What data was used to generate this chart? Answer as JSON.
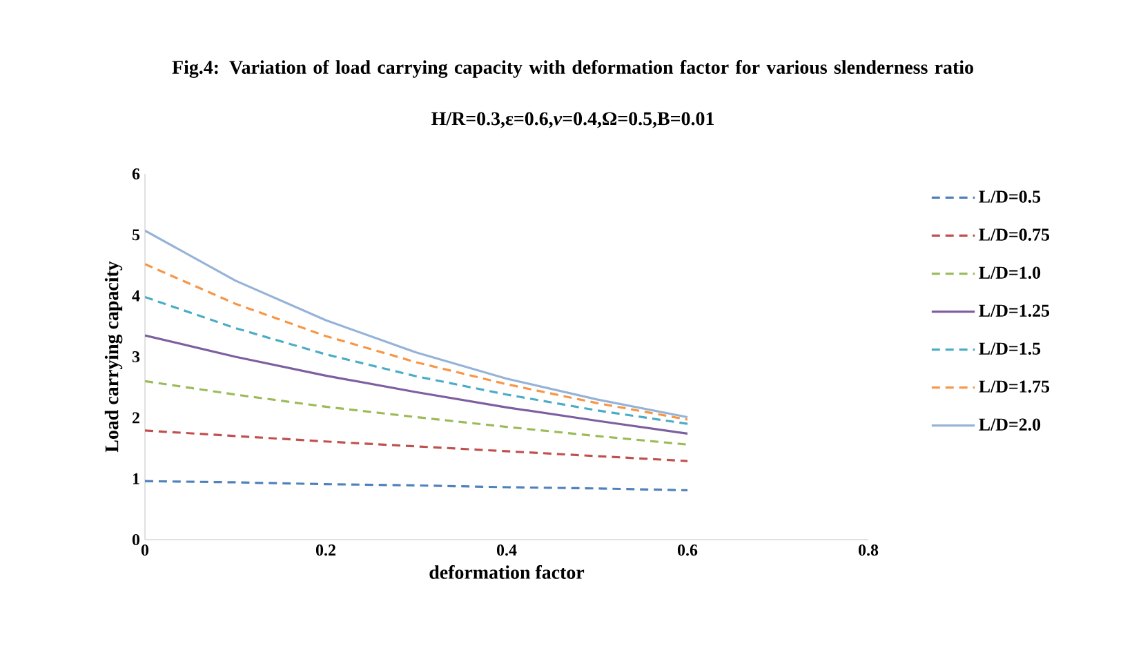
{
  "chart_data": {
    "type": "line",
    "title": "Fig.4: Variation of load carrying capacity with deformation factor for various slenderness ratio",
    "subtitle": "H/R=0.3,ε=0.6,*ν*=0.4,Ω=0.5,B=0.01",
    "xlabel": "deformation factor",
    "ylabel": "Load carrying capacity",
    "x": [
      0,
      0.1,
      0.2,
      0.3,
      0.4,
      0.5,
      0.6
    ],
    "series": [
      {
        "name": "L/D=0.5",
        "color": "#4f81bd",
        "line_style": "dashed",
        "values": [
          0.96,
          0.94,
          0.91,
          0.89,
          0.86,
          0.84,
          0.81
        ]
      },
      {
        "name": "L/D=0.75",
        "color": "#c0504d",
        "line_style": "dashed",
        "values": [
          1.79,
          1.7,
          1.61,
          1.53,
          1.45,
          1.37,
          1.29
        ]
      },
      {
        "name": "L/D=1.0",
        "color": "#9bbb59",
        "line_style": "dashed",
        "values": [
          2.6,
          2.38,
          2.18,
          2.01,
          1.85,
          1.7,
          1.56
        ]
      },
      {
        "name": "L/D=1.25",
        "color": "#7d5fa0",
        "line_style": "solid",
        "values": [
          3.35,
          3.0,
          2.69,
          2.42,
          2.17,
          1.95,
          1.74
        ]
      },
      {
        "name": "L/D=1.5",
        "color": "#4bacc6",
        "line_style": "dashed",
        "values": [
          3.98,
          3.47,
          3.04,
          2.68,
          2.38,
          2.12,
          1.9
        ]
      },
      {
        "name": "L/D=1.75",
        "color": "#f79646",
        "line_style": "dashed",
        "values": [
          4.52,
          3.87,
          3.34,
          2.91,
          2.55,
          2.24,
          1.97
        ]
      },
      {
        "name": "L/D=2.0",
        "color": "#95b3d7",
        "line_style": "solid",
        "values": [
          5.07,
          4.25,
          3.6,
          3.07,
          2.64,
          2.3,
          2.01
        ]
      }
    ],
    "xlim": [
      0,
      0.8
    ],
    "xticks": [
      0,
      0.2,
      0.4,
      0.6,
      0.8
    ],
    "ylim": [
      0,
      6
    ],
    "yticks": [
      0,
      1,
      2,
      3,
      4,
      5,
      6
    ],
    "grid": false,
    "legend": "right",
    "marker": "none"
  }
}
